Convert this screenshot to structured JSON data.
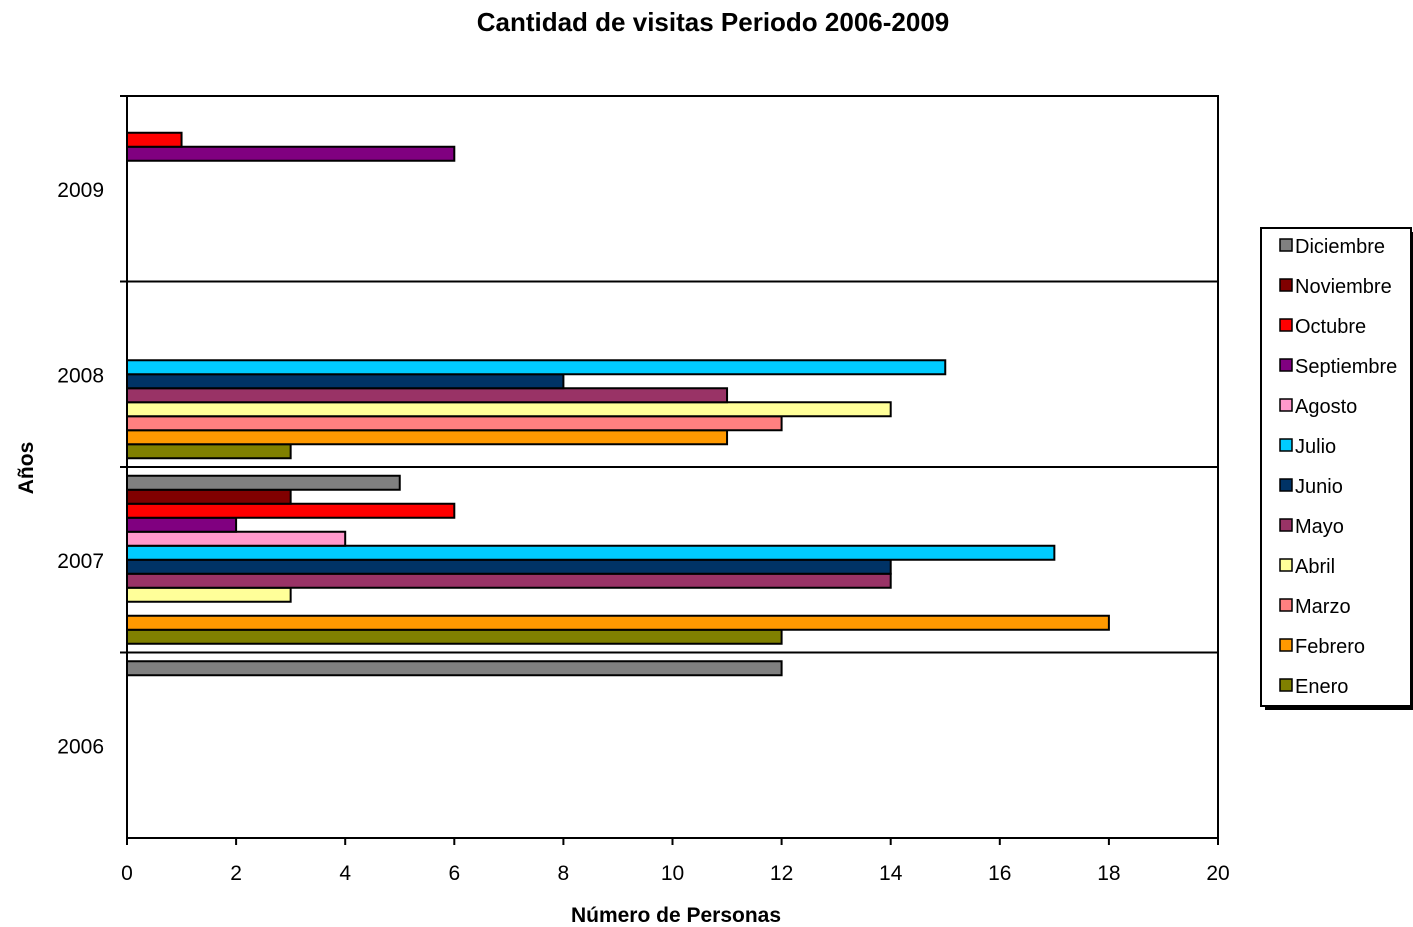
{
  "chart_data": {
    "type": "bar",
    "orientation": "horizontal",
    "title": "Cantidad de visitas Periodo 2006-2009",
    "xlabel": "Número de Personas",
    "ylabel": "Años",
    "xlim": [
      0,
      20
    ],
    "xticks": [
      "0",
      "2",
      "4",
      "6",
      "8",
      "10",
      "12",
      "14",
      "16",
      "18",
      "20"
    ],
    "categories": [
      "2006",
      "2007",
      "2008",
      "2009"
    ],
    "legend_position": "right",
    "series": [
      {
        "name": "Enero",
        "color": "#808000",
        "values": [
          null,
          12,
          3,
          null
        ]
      },
      {
        "name": "Febrero",
        "color": "#FF9900",
        "values": [
          null,
          18,
          11,
          null
        ]
      },
      {
        "name": "Marzo",
        "color": "#FF8080",
        "values": [
          null,
          null,
          12,
          null
        ]
      },
      {
        "name": "Abril",
        "color": "#FFFF99",
        "values": [
          null,
          3,
          14,
          null
        ]
      },
      {
        "name": "Mayo",
        "color": "#993366",
        "values": [
          null,
          14,
          11,
          null
        ]
      },
      {
        "name": "Junio",
        "color": "#003366",
        "values": [
          null,
          14,
          8,
          null
        ]
      },
      {
        "name": "Julio",
        "color": "#00CCFF",
        "values": [
          null,
          17,
          15,
          null
        ]
      },
      {
        "name": "Agosto",
        "color": "#FF99CC",
        "values": [
          null,
          4,
          null,
          null
        ]
      },
      {
        "name": "Septiembre",
        "color": "#800080",
        "values": [
          null,
          2,
          null,
          6
        ]
      },
      {
        "name": "Octubre",
        "color": "#FF0000",
        "values": [
          null,
          6,
          null,
          1
        ]
      },
      {
        "name": "Noviembre",
        "color": "#800000",
        "values": [
          null,
          3,
          null,
          null
        ]
      },
      {
        "name": "Diciembre",
        "color": "#808080",
        "values": [
          12,
          5,
          null,
          null
        ]
      }
    ]
  }
}
